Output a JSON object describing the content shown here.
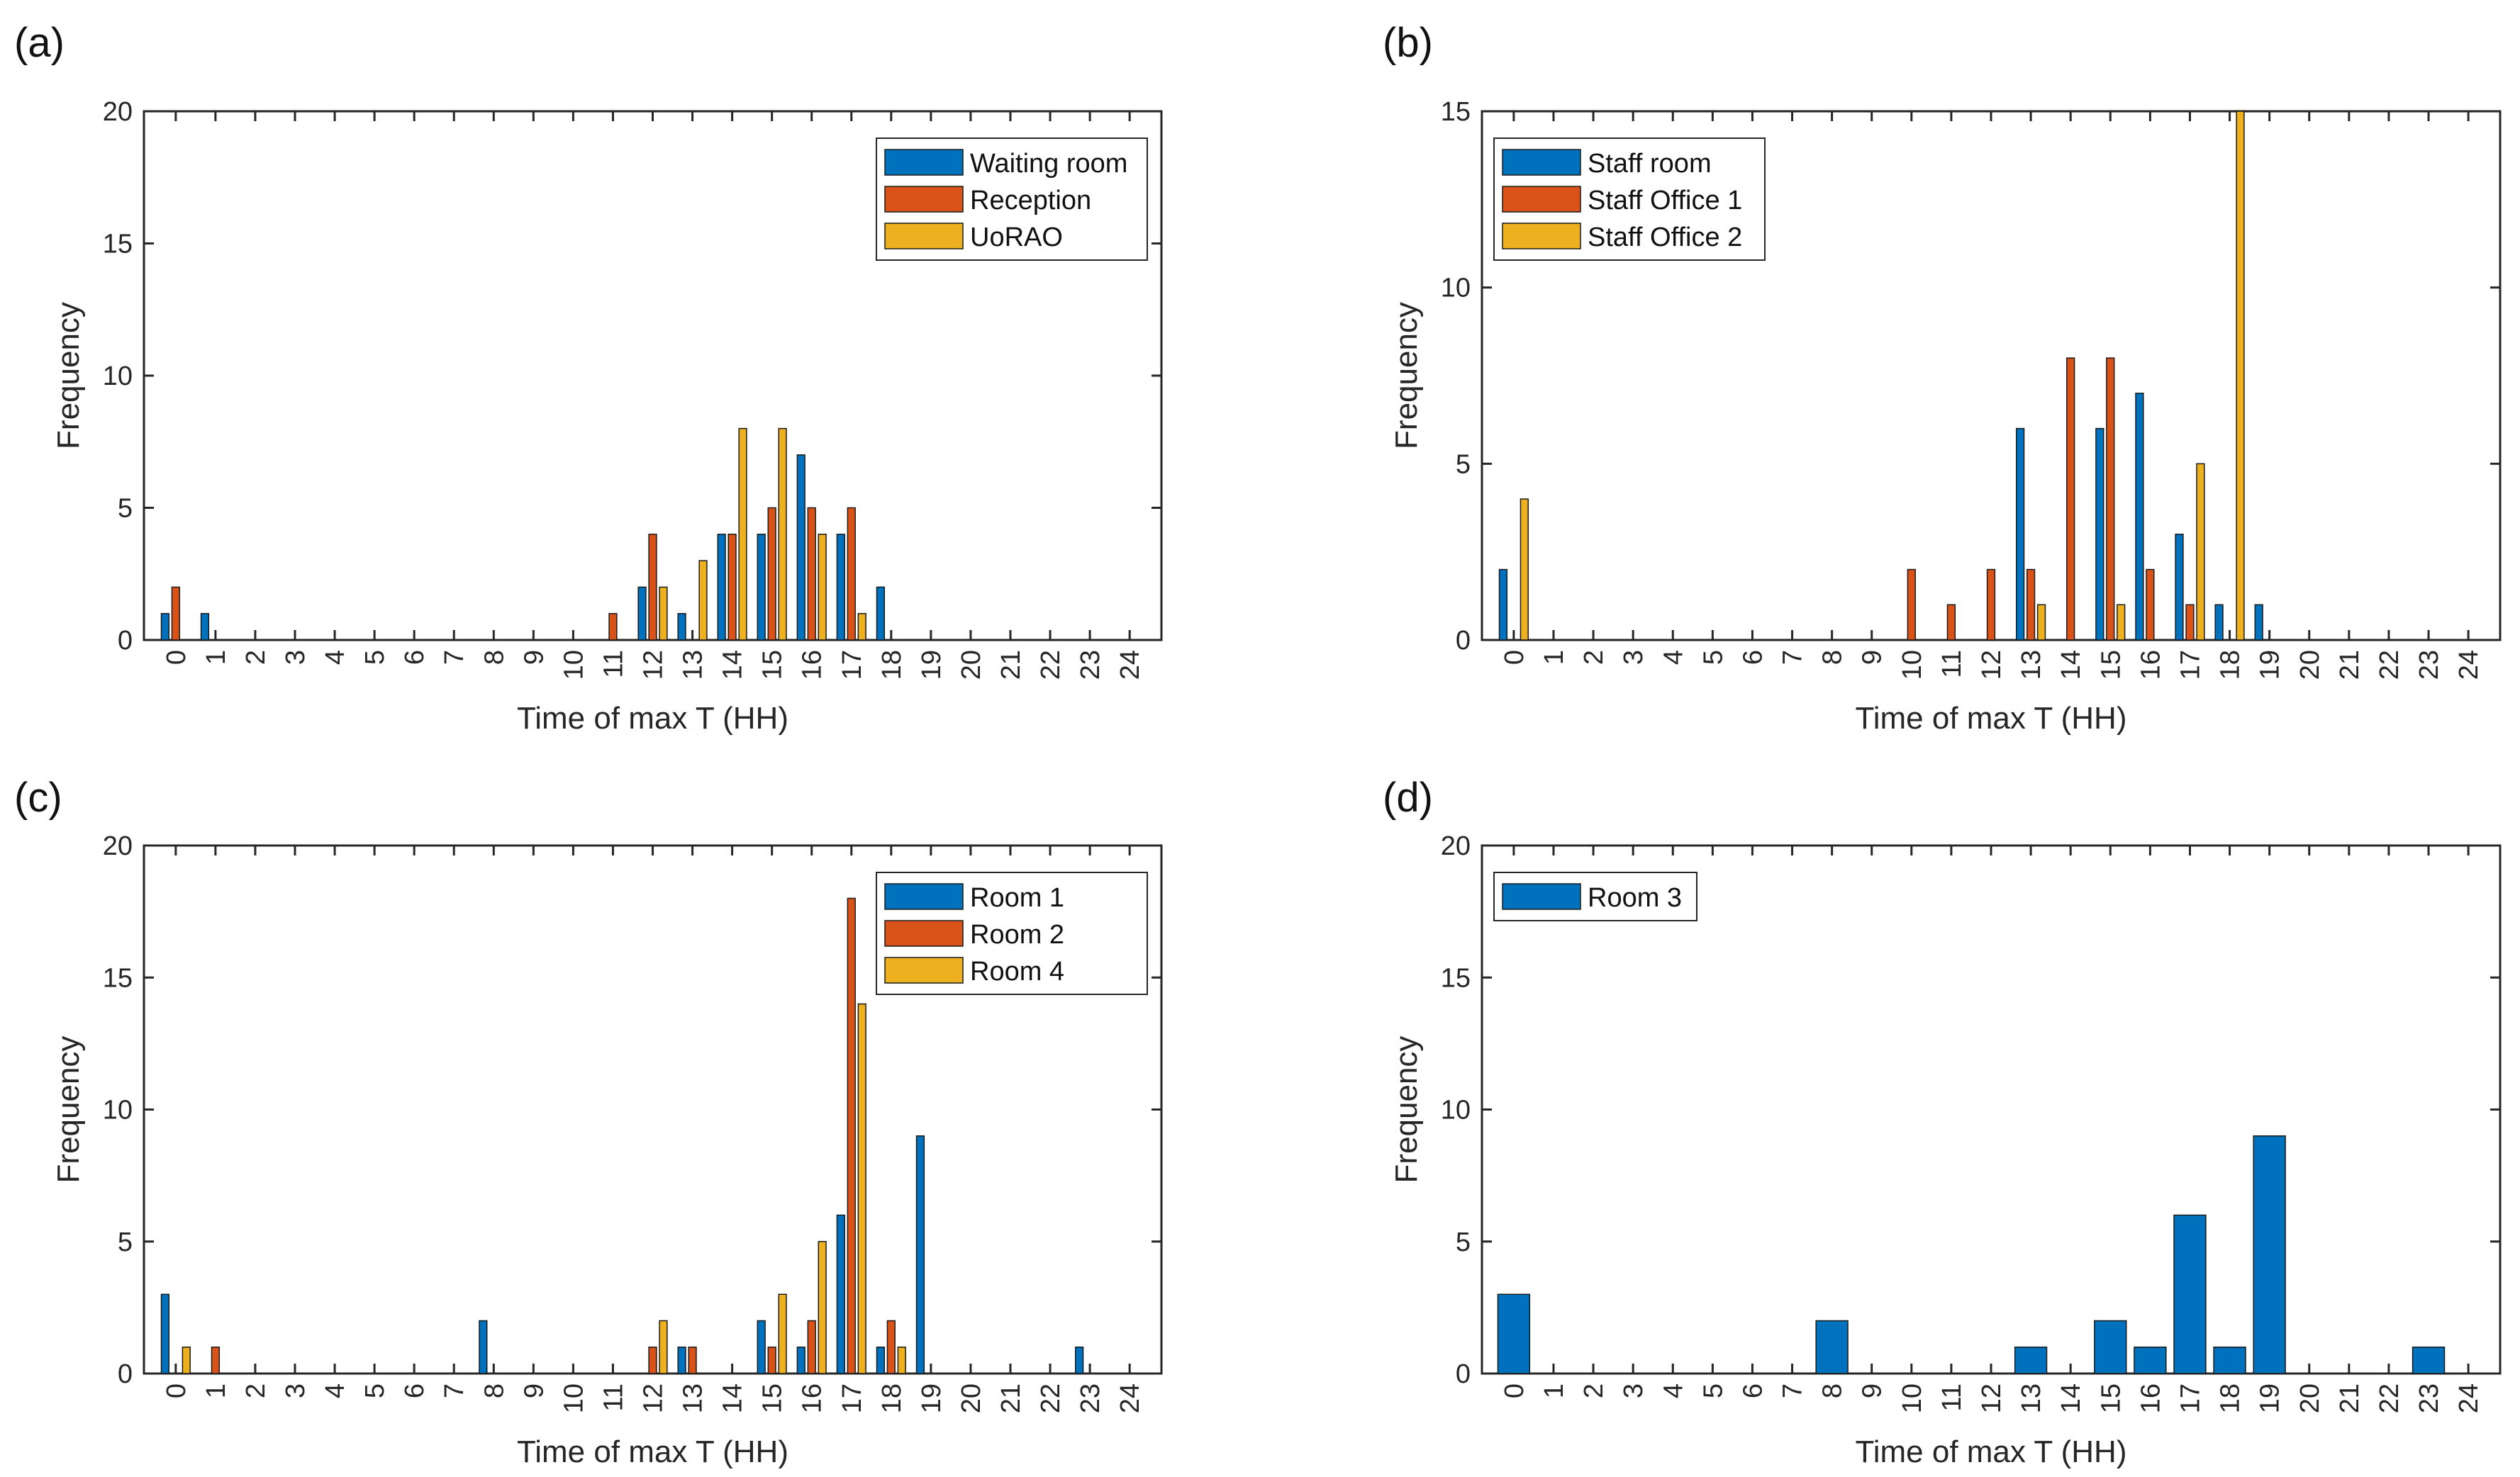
{
  "colors": {
    "series1": "#0072BD",
    "series2": "#D95319",
    "series3": "#EDB120"
  },
  "chart_data": [
    {
      "type": "bar",
      "panel_label": "(a)",
      "xlabel": "Time of max T (HH)",
      "ylabel": "Frequency",
      "ylim": [
        0,
        20
      ],
      "yticks": [
        0,
        5,
        10,
        15,
        20
      ],
      "categories": [
        "0",
        "1",
        "2",
        "3",
        "4",
        "5",
        "6",
        "7",
        "8",
        "9",
        "10",
        "11",
        "12",
        "13",
        "14",
        "15",
        "16",
        "17",
        "18",
        "19",
        "20",
        "21",
        "22",
        "23",
        "24"
      ],
      "legend_position": "top-right",
      "series": [
        {
          "name": "Waiting room",
          "values": [
            1,
            1,
            0,
            0,
            0,
            0,
            0,
            0,
            0,
            0,
            0,
            0,
            2,
            1,
            4,
            4,
            7,
            4,
            2,
            0,
            0,
            0,
            0,
            0,
            0
          ]
        },
        {
          "name": "Reception",
          "values": [
            2,
            0,
            0,
            0,
            0,
            0,
            0,
            0,
            0,
            0,
            0,
            1,
            4,
            0,
            4,
            5,
            5,
            5,
            0,
            0,
            0,
            0,
            0,
            0,
            0
          ]
        },
        {
          "name": "UoRAO",
          "values": [
            0,
            0,
            0,
            0,
            0,
            0,
            0,
            0,
            0,
            0,
            0,
            0,
            2,
            3,
            8,
            8,
            4,
            1,
            0,
            0,
            0,
            0,
            0,
            0,
            0
          ]
        }
      ]
    },
    {
      "type": "bar",
      "panel_label": "(b)",
      "xlabel": "Time of max T (HH)",
      "ylabel": "Frequency",
      "ylim": [
        0,
        15
      ],
      "yticks": [
        0,
        5,
        10,
        15
      ],
      "categories": [
        "0",
        "1",
        "2",
        "3",
        "4",
        "5",
        "6",
        "7",
        "8",
        "9",
        "10",
        "11",
        "12",
        "13",
        "14",
        "15",
        "16",
        "17",
        "18",
        "19",
        "20",
        "21",
        "22",
        "23",
        "24"
      ],
      "legend_position": "top-left",
      "series": [
        {
          "name": "Staff room",
          "values": [
            2,
            0,
            0,
            0,
            0,
            0,
            0,
            0,
            0,
            0,
            0,
            0,
            0,
            6,
            0,
            6,
            7,
            3,
            1,
            1,
            0,
            0,
            0,
            0,
            0
          ]
        },
        {
          "name": "Staff Office 1",
          "values": [
            0,
            0,
            0,
            0,
            0,
            0,
            0,
            0,
            0,
            0,
            2,
            1,
            2,
            2,
            8,
            8,
            2,
            1,
            0,
            0,
            0,
            0,
            0,
            0,
            0
          ]
        },
        {
          "name": "Staff Office 2",
          "values": [
            4,
            0,
            0,
            0,
            0,
            0,
            0,
            0,
            0,
            0,
            0,
            0,
            0,
            1,
            0,
            1,
            0,
            5,
            15,
            0,
            0,
            0,
            0,
            0,
            0
          ]
        }
      ]
    },
    {
      "type": "bar",
      "panel_label": "(c)",
      "xlabel": "Time of max T (HH)",
      "ylabel": "Frequency",
      "ylim": [
        0,
        20
      ],
      "yticks": [
        0,
        5,
        10,
        15,
        20
      ],
      "categories": [
        "0",
        "1",
        "2",
        "3",
        "4",
        "5",
        "6",
        "7",
        "8",
        "9",
        "10",
        "11",
        "12",
        "13",
        "14",
        "15",
        "16",
        "17",
        "18",
        "19",
        "20",
        "21",
        "22",
        "23",
        "24"
      ],
      "legend_position": "top-right",
      "series": [
        {
          "name": "Room 1",
          "values": [
            3,
            0,
            0,
            0,
            0,
            0,
            0,
            0,
            2,
            0,
            0,
            0,
            0,
            1,
            0,
            2,
            1,
            6,
            1,
            9,
            0,
            0,
            0,
            1,
            0
          ]
        },
        {
          "name": "Room 2",
          "values": [
            0,
            1,
            0,
            0,
            0,
            0,
            0,
            0,
            0,
            0,
            0,
            0,
            1,
            1,
            0,
            1,
            2,
            18,
            2,
            0,
            0,
            0,
            0,
            0,
            0
          ]
        },
        {
          "name": "Room 4",
          "values": [
            1,
            0,
            0,
            0,
            0,
            0,
            0,
            0,
            0,
            0,
            0,
            0,
            2,
            0,
            0,
            3,
            5,
            14,
            1,
            0,
            0,
            0,
            0,
            0,
            0
          ]
        }
      ]
    },
    {
      "type": "bar",
      "panel_label": "(d)",
      "xlabel": "Time of max T (HH)",
      "ylabel": "Frequency",
      "ylim": [
        0,
        20
      ],
      "yticks": [
        0,
        5,
        10,
        15,
        20
      ],
      "categories": [
        "0",
        "1",
        "2",
        "3",
        "4",
        "5",
        "6",
        "7",
        "8",
        "9",
        "10",
        "11",
        "12",
        "13",
        "14",
        "15",
        "16",
        "17",
        "18",
        "19",
        "20",
        "21",
        "22",
        "23",
        "24"
      ],
      "legend_position": "top-left",
      "series": [
        {
          "name": "Room 3",
          "values": [
            3,
            0,
            0,
            0,
            0,
            0,
            0,
            0,
            2,
            0,
            0,
            0,
            0,
            1,
            0,
            2,
            1,
            6,
            1,
            9,
            0,
            0,
            0,
            1,
            0
          ]
        }
      ]
    }
  ]
}
